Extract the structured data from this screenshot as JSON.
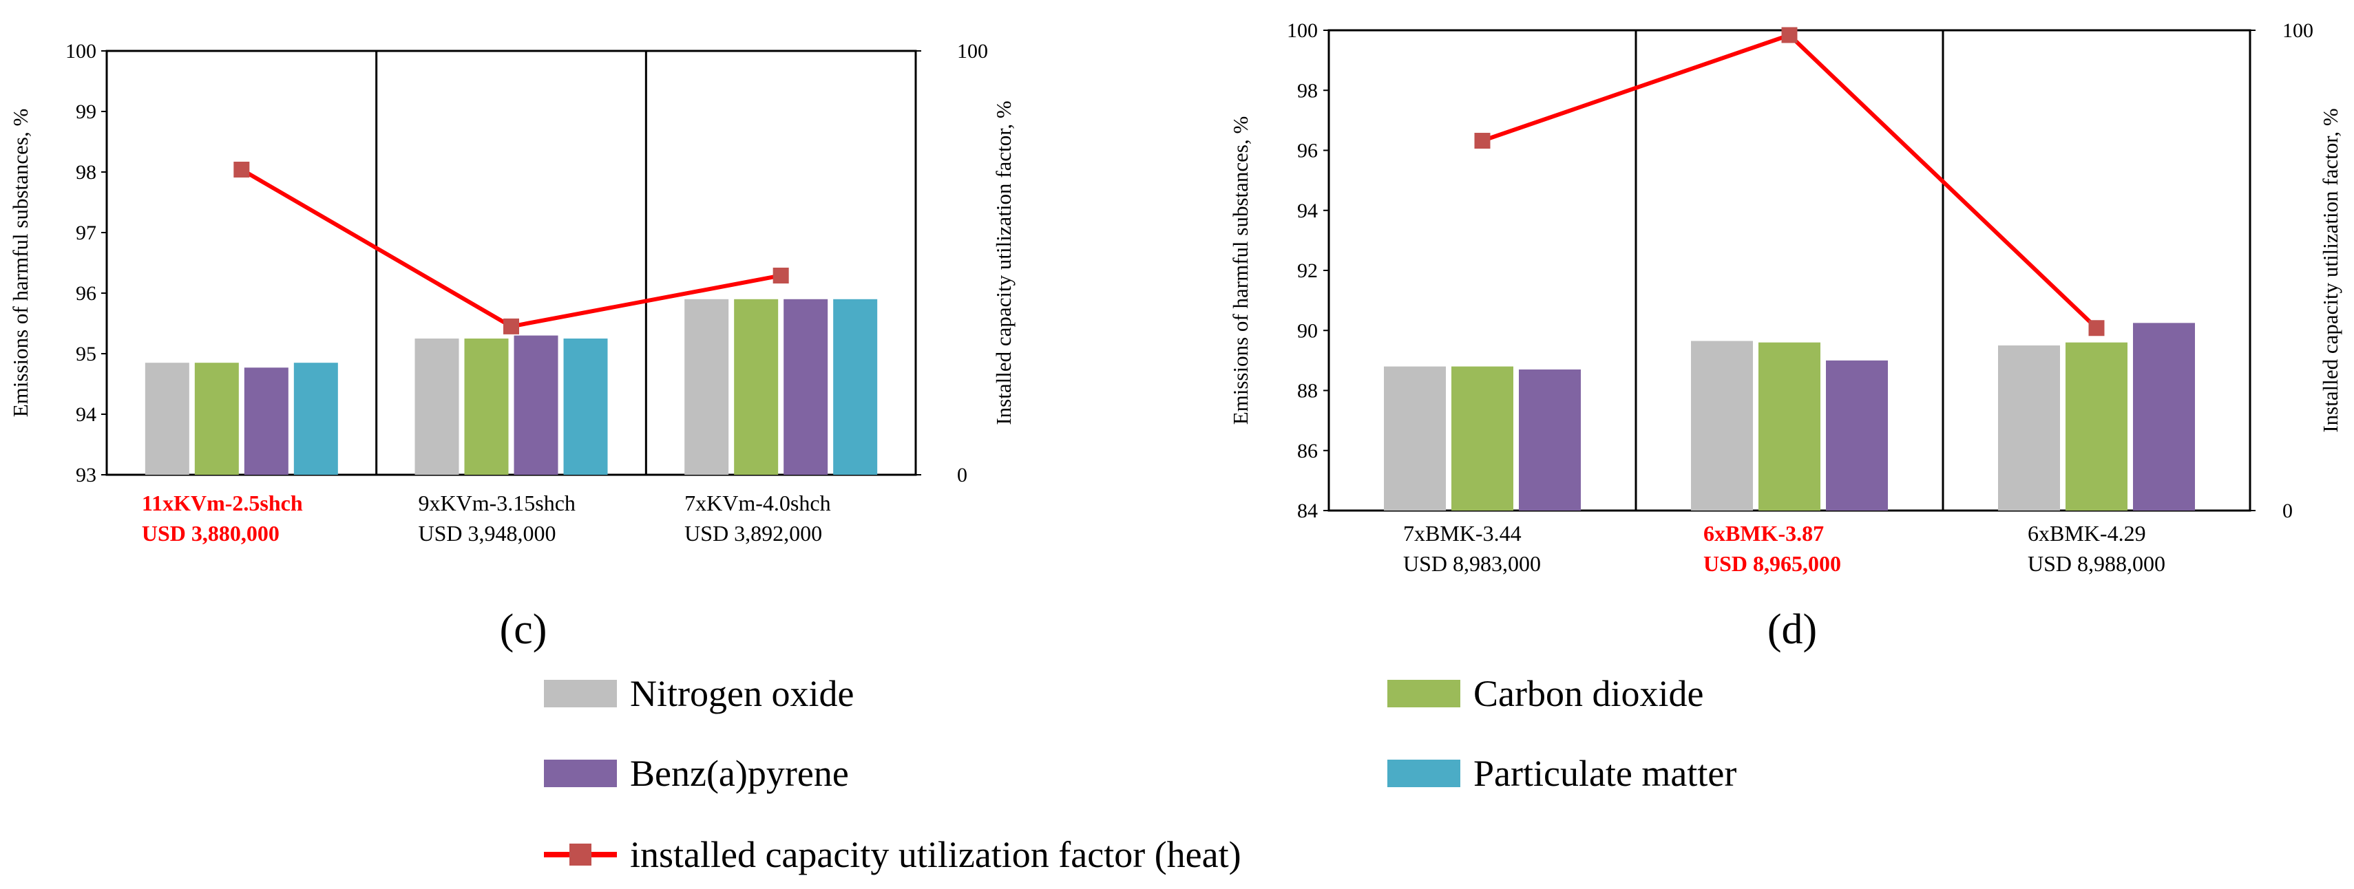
{
  "chart_data": [
    {
      "type": "bar",
      "panel_label": "(c)",
      "categories": [
        {
          "line1": "11xKVm-2.5shch",
          "line2": "USD 3,880,000",
          "highlight": true
        },
        {
          "line1": "9xKVm-3.15shch",
          "line2": "USD 3,948,000",
          "highlight": false
        },
        {
          "line1": "7xKVm-4.0shch",
          "line2": "USD 3,892,000",
          "highlight": false
        }
      ],
      "series": [
        {
          "name": "Nitrogen oxide",
          "values": [
            94.85,
            95.25,
            95.9
          ]
        },
        {
          "name": "Carbon dioxide",
          "values": [
            94.85,
            95.25,
            95.9
          ]
        },
        {
          "name": "Benz(a)pyrene",
          "values": [
            94.77,
            95.3,
            95.9
          ]
        },
        {
          "name": "Particulate matter",
          "values": [
            94.85,
            95.25,
            95.9
          ]
        }
      ],
      "line_series": {
        "name": "installed capacity utilization factor (heat)",
        "values": [
          72,
          35,
          47
        ]
      },
      "ylabel": "Emissions of harmful substances, %",
      "y2label": "Installed capacity utilization factor,  %",
      "ylim": [
        93,
        100
      ],
      "yticks": [
        93,
        94,
        95,
        96,
        97,
        98,
        99,
        100
      ],
      "y2lim": [
        0,
        100
      ],
      "y2ticks": [
        0,
        100
      ],
      "grid": false
    },
    {
      "type": "bar",
      "panel_label": "(d)",
      "categories": [
        {
          "line1": "7xBMK-3.44",
          "line2": "USD 8,983,000",
          "highlight": false
        },
        {
          "line1": "6xBMK-3.87",
          "line2": "USD 8,965,000",
          "highlight": true
        },
        {
          "line1": "6xBMK-4.29",
          "line2": "USD 8,988,000",
          "highlight": false
        }
      ],
      "series": [
        {
          "name": "Nitrogen oxide",
          "values": [
            88.8,
            89.65,
            89.5
          ]
        },
        {
          "name": "Carbon dioxide",
          "values": [
            88.8,
            89.6,
            89.6
          ]
        },
        {
          "name": "Benz(a)pyrene",
          "values": [
            88.7,
            89.0,
            90.25
          ]
        }
      ],
      "line_series": {
        "name": "installed capacity utilization factor (heat)",
        "values": [
          77,
          99,
          38
        ]
      },
      "ylabel": "Emissions of harmful substances, %",
      "y2label": "Installed capacity utilization factor, %",
      "ylim": [
        84,
        100
      ],
      "yticks": [
        84,
        86,
        88,
        90,
        92,
        94,
        96,
        98,
        100
      ],
      "y2lim": [
        0,
        100
      ],
      "y2ticks": [
        0,
        100
      ],
      "grid": false
    }
  ],
  "legend": {
    "items": [
      {
        "name": "Nitrogen oxide",
        "kind": "bar"
      },
      {
        "name": "Carbon dioxide",
        "kind": "bar"
      },
      {
        "name": "Benz(a)pyrene",
        "kind": "bar"
      },
      {
        "name": "Particulate matter",
        "kind": "bar"
      },
      {
        "name": "installed capacity utilization factor (heat)",
        "kind": "line"
      }
    ]
  },
  "colors": {
    "Nitrogen oxide": "#bfbfbf",
    "Carbon dioxide": "#9bbb59",
    "Benz(a)pyrene": "#8064a2",
    "Particulate matter": "#4bacc6",
    "line": "#ff0000",
    "marker": "#c0504d",
    "highlight_text": "#ff0000"
  }
}
